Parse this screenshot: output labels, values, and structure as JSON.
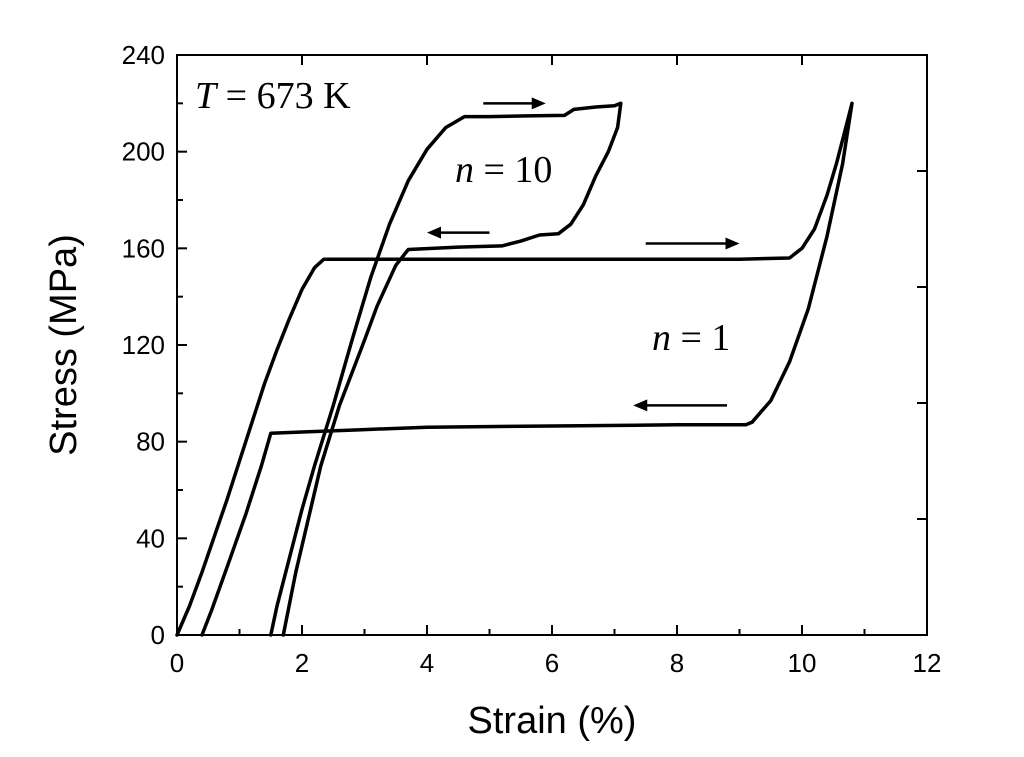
{
  "chart_data": {
    "type": "line",
    "xlabel": "Strain (%)",
    "ylabel": "Stress (MPa)",
    "xlim": [
      0,
      12
    ],
    "ylim": [
      0,
      240
    ],
    "x_ticks": [
      "0",
      "2",
      "4",
      "6",
      "8",
      "10",
      "12"
    ],
    "y_ticks": [
      "0",
      "40",
      "80",
      "120",
      "160",
      "200",
      "240"
    ],
    "grid": false,
    "annotations": {
      "temperature_var": "T",
      "temperature_value": " = 673 K",
      "n10_var": "n",
      "n10_value": " = 10",
      "n1_var": "n",
      "n1_value": " = 1"
    },
    "series": [
      {
        "values": [
          [
            0.0,
            0
          ],
          [
            0.2,
            12
          ],
          [
            0.4,
            26
          ],
          [
            0.6,
            41
          ],
          [
            0.8,
            56
          ],
          [
            1.0,
            72
          ],
          [
            1.2,
            88
          ],
          [
            1.4,
            104
          ],
          [
            1.6,
            118
          ],
          [
            1.8,
            131
          ],
          [
            2.0,
            143
          ],
          [
            2.2,
            152
          ],
          [
            2.35,
            155.5
          ],
          [
            3.0,
            155.5
          ],
          [
            5.0,
            155.5
          ],
          [
            7.0,
            155.5
          ],
          [
            9.0,
            155.5
          ],
          [
            9.8,
            156
          ],
          [
            10.0,
            160
          ],
          [
            10.2,
            168
          ],
          [
            10.4,
            182
          ],
          [
            10.55,
            195
          ],
          [
            10.7,
            210
          ],
          [
            10.8,
            220
          ],
          [
            10.65,
            195
          ],
          [
            10.4,
            165
          ],
          [
            10.1,
            135
          ],
          [
            9.8,
            113
          ],
          [
            9.5,
            97
          ],
          [
            9.2,
            88
          ],
          [
            9.1,
            87
          ],
          [
            8.0,
            87
          ],
          [
            6.0,
            86.5
          ],
          [
            4.0,
            86
          ],
          [
            3.0,
            85
          ],
          [
            2.0,
            84
          ],
          [
            1.5,
            83.5
          ],
          [
            1.35,
            70
          ],
          [
            1.1,
            50
          ],
          [
            0.8,
            28
          ],
          [
            0.55,
            10
          ],
          [
            0.4,
            0
          ]
        ]
      },
      {
        "values": [
          [
            1.5,
            0
          ],
          [
            1.6,
            12
          ],
          [
            1.8,
            32
          ],
          [
            2.0,
            52
          ],
          [
            2.2,
            70
          ],
          [
            2.5,
            95
          ],
          [
            2.8,
            122
          ],
          [
            3.1,
            148
          ],
          [
            3.4,
            170
          ],
          [
            3.7,
            188
          ],
          [
            4.0,
            201
          ],
          [
            4.3,
            210
          ],
          [
            4.6,
            214.5
          ],
          [
            5.0,
            214.5
          ],
          [
            5.6,
            214.8
          ],
          [
            6.2,
            215
          ],
          [
            6.35,
            217.5
          ],
          [
            6.7,
            218.5
          ],
          [
            7.0,
            219
          ],
          [
            7.1,
            220
          ],
          [
            7.05,
            210
          ],
          [
            6.9,
            200
          ],
          [
            6.7,
            190
          ],
          [
            6.5,
            178
          ],
          [
            6.3,
            170
          ],
          [
            6.1,
            166
          ],
          [
            5.8,
            165.5
          ],
          [
            5.5,
            163
          ],
          [
            5.2,
            161
          ],
          [
            4.5,
            160.5
          ],
          [
            3.7,
            159.5
          ],
          [
            3.5,
            153
          ],
          [
            3.2,
            136
          ],
          [
            3.0,
            122
          ],
          [
            2.6,
            95
          ],
          [
            2.3,
            70
          ],
          [
            2.1,
            48
          ],
          [
            1.9,
            26
          ],
          [
            1.7,
            0
          ]
        ]
      }
    ],
    "arrows": [
      {
        "from": [
          4.9,
          220
        ],
        "to": [
          5.9,
          220
        ]
      },
      {
        "from": [
          5.0,
          166.5
        ],
        "to": [
          4.0,
          166.5
        ]
      },
      {
        "from": [
          7.5,
          162
        ],
        "to": [
          9.0,
          162
        ]
      },
      {
        "from": [
          8.8,
          95
        ],
        "to": [
          7.3,
          95
        ]
      }
    ]
  }
}
